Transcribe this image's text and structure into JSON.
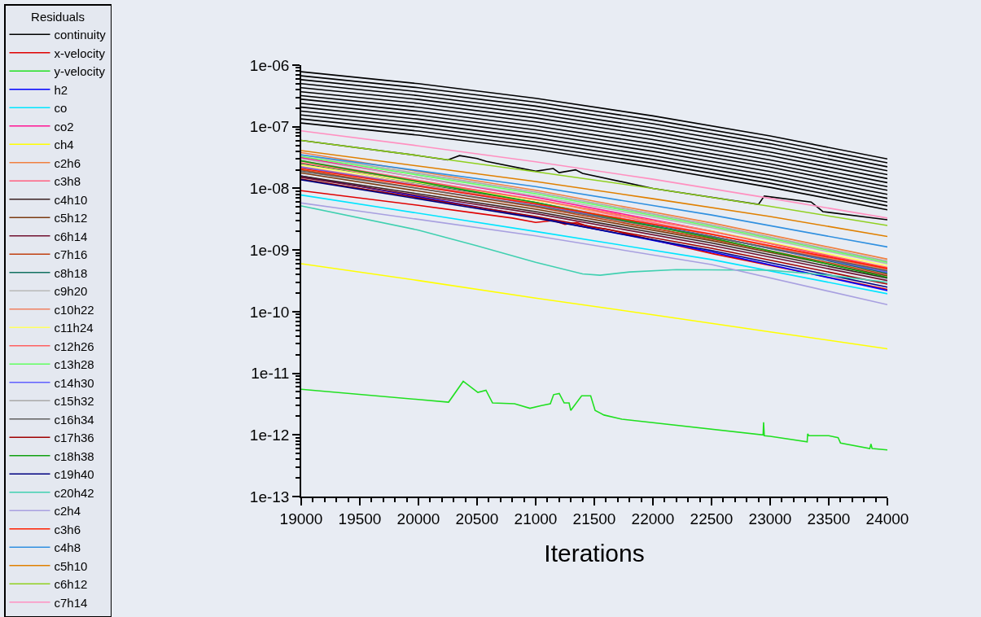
{
  "chart_data": {
    "type": "line",
    "xlabel": "Iterations",
    "legend_title": "Residuals",
    "legend": "left",
    "log": "y",
    "grid": false,
    "marker": "none",
    "line_style": "solid",
    "xlim": [
      19000,
      24000
    ],
    "xticks": [
      19000,
      19500,
      20000,
      20500,
      21000,
      21500,
      22000,
      22500,
      23000,
      23500,
      24000
    ],
    "ylim": [
      1e-13,
      1e-06
    ],
    "yticks": [
      {
        "value": 1e-06,
        "label": "1e-06"
      },
      {
        "value": 1e-07,
        "label": "1e-07"
      },
      {
        "value": 1e-08,
        "label": "1e-08"
      },
      {
        "value": 1e-09,
        "label": "1e-09"
      },
      {
        "value": 1e-10,
        "label": "1e-10"
      },
      {
        "value": 1e-11,
        "label": "1e-11"
      },
      {
        "value": 1e-12,
        "label": "1e-12"
      },
      {
        "value": 1e-13,
        "label": "1e-13"
      }
    ],
    "series": [
      {
        "name": "continuity",
        "color": "#000000",
        "x": [
          19000,
          20000,
          20250,
          20350,
          20500,
          20580,
          21000,
          21150,
          21200,
          21340,
          21400,
          22000,
          22900,
          22950,
          23350,
          23450,
          24000
        ],
        "values": [
          6e-08,
          3.4e-08,
          2.9e-08,
          3.4e-08,
          3.05e-08,
          2.75e-08,
          1.9e-08,
          2.1e-08,
          1.8e-08,
          2e-08,
          1.75e-08,
          1e-08,
          5.5e-09,
          7.5e-09,
          6e-09,
          4.2e-09,
          3.1e-09
        ]
      },
      {
        "name": "x-velocity",
        "color": "#e00000",
        "x": [
          19000,
          20000,
          20800,
          21000,
          21150,
          21250,
          21350,
          21450,
          21600,
          22500,
          24000
        ],
        "values": [
          9.2e-09,
          5.3e-09,
          3.3e-09,
          2.8e-09,
          3e-09,
          2.6e-09,
          2.8e-09,
          2.4e-09,
          2.2e-09,
          8.8e-10,
          2.3e-10
        ]
      },
      {
        "name": "y-velocity",
        "color": "#20e020",
        "x": [
          19000,
          20257,
          20382,
          20507,
          20576,
          20632,
          20820,
          20951,
          21049,
          21125,
          21153,
          21201,
          21243,
          21285,
          21299,
          21392,
          21469,
          21507,
          21583,
          21736,
          22940,
          22944,
          22950,
          23000,
          23316,
          23320,
          23330,
          23400,
          23500,
          23580,
          23600,
          23850,
          23860,
          23870,
          24000
        ],
        "values": [
          5.5e-12,
          3.4e-12,
          7.4e-12,
          4.9e-12,
          5.3e-12,
          3.3e-12,
          3.2e-12,
          2.7e-12,
          3e-12,
          3.2e-12,
          4.5e-12,
          4.7e-12,
          3.3e-12,
          3.3e-12,
          2.5e-12,
          4.3e-12,
          4.3e-12,
          2.5e-12,
          2.1e-12,
          1.8e-12,
          1e-12,
          1.6e-12,
          9.7e-13,
          9.5e-13,
          7.7e-13,
          1.04e-12,
          9.7e-13,
          9.7e-13,
          9.7e-13,
          9e-13,
          7.4e-13,
          6e-13,
          7.1e-13,
          6e-13,
          5.7e-13
        ]
      },
      {
        "name": "h2",
        "color": "#0000ff",
        "x": [
          19000,
          21000,
          22500,
          24000
        ],
        "values": [
          1.58e-08,
          3.4e-09,
          9.3e-10,
          2.2e-10
        ]
      },
      {
        "name": "co",
        "color": "#00e5ff",
        "x": [
          19000,
          21000,
          22500,
          24000
        ],
        "values": [
          7.8e-09,
          2e-09,
          7e-10,
          1.95e-10
        ]
      },
      {
        "name": "co2",
        "color": "#ff1493",
        "x": [
          19000,
          21000,
          22500,
          24000
        ],
        "values": [
          3.16e-08,
          7.2e-09,
          2.04e-09,
          5e-10
        ]
      },
      {
        "name": "ch4",
        "color": "#ffff00",
        "x": [
          19000,
          20000,
          21000,
          22000,
          23000,
          24000
        ],
        "values": [
          6e-10,
          3.2e-10,
          1.66e-10,
          8.9e-11,
          4.7e-11,
          2.5e-11
        ]
      },
      {
        "name": "c2h6",
        "color": "#f08040",
        "x": [
          19000,
          21000,
          22500,
          24000
        ],
        "values": [
          3.8e-08,
          9.3e-09,
          2.75e-09,
          7.1e-10
        ]
      },
      {
        "name": "c3h8",
        "color": "#ff6080",
        "x": [
          19000,
          21000,
          22500,
          24000
        ],
        "values": [
          2.8e-08,
          6.5e-09,
          1.82e-09,
          4.5e-10
        ]
      },
      {
        "name": "c4h10",
        "color": "#3a2020",
        "x": [
          19000,
          21000,
          22500,
          24000
        ],
        "values": [
          1.58e-08,
          4.2e-09,
          1.3e-09,
          3.5e-10
        ]
      },
      {
        "name": "c5h12",
        "color": "#7a3a10",
        "x": [
          19000,
          21000,
          22500,
          24000
        ],
        "values": [
          1.78e-08,
          4.6e-09,
          1.42e-09,
          3.8e-10
        ]
      },
      {
        "name": "c6h14",
        "color": "#701030",
        "x": [
          19000,
          21000,
          22500,
          24000
        ],
        "values": [
          1.51e-08,
          3.9e-09,
          1.19e-09,
          3.2e-10
        ]
      },
      {
        "name": "c7h16",
        "color": "#c04010",
        "x": [
          19000,
          21000,
          22500,
          24000
        ],
        "values": [
          2e-08,
          5e-09,
          1.51e-09,
          4e-10
        ]
      },
      {
        "name": "c8h18",
        "color": "#107060",
        "x": [
          19000,
          21000,
          22500,
          24000
        ],
        "values": [
          2.5e-08,
          5.9e-09,
          1.67e-09,
          4.2e-10
        ]
      },
      {
        "name": "c9h20",
        "color": "#b8b8b8",
        "x": [
          19000,
          21000,
          22500,
          24000
        ],
        "values": [
          3e-08,
          7.6e-09,
          2.3e-09,
          6e-10
        ]
      },
      {
        "name": "c10h22",
        "color": "#f08060",
        "x": [
          19000,
          21000,
          22500,
          24000
        ],
        "values": [
          2.24e-08,
          5.8e-09,
          1.78e-09,
          4.8e-10
        ]
      },
      {
        "name": "c11h24",
        "color": "#ffff60",
        "x": [
          19000,
          21000,
          22500,
          24000
        ],
        "values": [
          2.4e-08,
          6.4e-09,
          2.04e-09,
          5.6e-10
        ]
      },
      {
        "name": "c12h26",
        "color": "#ff6060",
        "x": [
          19000,
          21000,
          22500,
          24000
        ],
        "values": [
          2.6e-08,
          6.6e-09,
          2e-09,
          5.2e-10
        ]
      },
      {
        "name": "c13h28",
        "color": "#60ff60",
        "x": [
          19000,
          21000,
          22500,
          24000
        ],
        "values": [
          3.3e-08,
          8.2e-09,
          2.43e-09,
          6.3e-10
        ]
      },
      {
        "name": "c14h30",
        "color": "#6060ff",
        "x": [
          19000,
          21000,
          22500,
          24000
        ],
        "values": [
          2.2e-08,
          5.5e-09,
          1.66e-09,
          4.4e-10
        ]
      },
      {
        "name": "c15h32",
        "color": "#a8a8a8",
        "x": [
          19000,
          21000,
          22500,
          24000
        ],
        "values": [
          3.5e-08,
          8.7e-09,
          2.56e-09,
          6.6e-10
        ]
      },
      {
        "name": "c16h34",
        "color": "#606060",
        "x": [
          19000,
          21000,
          22500,
          24000
        ],
        "values": [
          1.9e-08,
          5.2e-09,
          1.64e-09,
          4.6e-10
        ]
      },
      {
        "name": "c17h36",
        "color": "#a00000",
        "x": [
          19000,
          21000,
          22500,
          24000
        ],
        "values": [
          1.41e-08,
          3.5e-09,
          1.07e-09,
          2.8e-10
        ]
      },
      {
        "name": "c18h38",
        "color": "#10a010",
        "x": [
          19000,
          21000,
          22500,
          24000
        ],
        "values": [
          2.8e-08,
          5.9e-09,
          1.57e-09,
          3.6e-10
        ]
      },
      {
        "name": "c19h40",
        "color": "#000080",
        "x": [
          19000,
          21000,
          22500,
          24000
        ],
        "values": [
          1.38e-08,
          3.3e-09,
          9.8e-10,
          2.5e-10
        ]
      },
      {
        "name": "c20h42",
        "color": "#40d0b0",
        "x": [
          19000,
          20000,
          20500,
          21000,
          21400,
          21550,
          21800,
          22200,
          23000,
          23500,
          24000
        ],
        "values": [
          5.2e-09,
          2.1e-09,
          1.17e-09,
          6.3e-10,
          4.1e-10,
          3.9e-10,
          4.4e-10,
          4.8e-10,
          4.7e-10,
          3.9e-10,
          3e-10
        ]
      },
      {
        "name": "c2h4",
        "color": "#a8a0e0",
        "x": [
          19000,
          21000,
          22500,
          24000
        ],
        "values": [
          5.8e-09,
          1.7e-09,
          5.8e-10,
          1.3e-10
        ]
      },
      {
        "name": "c3h6",
        "color": "#ff2000",
        "x": [
          19000,
          21000,
          22500,
          24000
        ],
        "values": [
          2.1e-08,
          5.6e-09,
          1.8e-09,
          5e-10
        ]
      },
      {
        "name": "c4h8",
        "color": "#3090e0",
        "x": [
          19000,
          21000,
          22500,
          24000
        ],
        "values": [
          3.5e-08,
          1.07e-08,
          3.7e-09,
          1.12e-09
        ]
      },
      {
        "name": "c5h10",
        "color": "#e08000",
        "x": [
          19000,
          20000,
          21000,
          22000,
          23000,
          24000
        ],
        "values": [
          4.1e-08,
          2.3e-08,
          1.29e-08,
          6.8e-09,
          3.5e-09,
          1.66e-09
        ]
      },
      {
        "name": "c6h12",
        "color": "#90d020",
        "x": [
          19000,
          20000,
          21000,
          22000,
          23000,
          24000
        ],
        "values": [
          6e-08,
          3.4e-08,
          1.86e-08,
          1e-08,
          5.1e-09,
          2.5e-09
        ]
      },
      {
        "name": "c7h14",
        "color": "#ff90c0",
        "x": [
          19000,
          20000,
          21000,
          22000,
          23000,
          24000
        ],
        "values": [
          8.6e-08,
          4.9e-08,
          2.7e-08,
          1.41e-08,
          6.9e-09,
          3.3e-09
        ]
      },
      {
        "color": "#000000",
        "x": [
          19000,
          20000,
          21000,
          22000,
          23000,
          24000
        ],
        "values": [
          7.8e-07,
          5e-07,
          2.9e-07,
          1.5e-07,
          7.1e-08,
          3e-08
        ]
      },
      {
        "color": "#000000",
        "x": [
          19000,
          20000,
          21000,
          22000,
          23000,
          24000
        ],
        "values": [
          6.7e-07,
          4.3e-07,
          2.5e-07,
          1.29e-07,
          6.1e-08,
          2.6e-08
        ]
      },
      {
        "color": "#000000",
        "x": [
          19000,
          20000,
          21000,
          22000,
          23000,
          24000
        ],
        "values": [
          5.8e-07,
          3.7e-07,
          2.16e-07,
          1.12e-07,
          5.3e-08,
          2.24e-08
        ]
      },
      {
        "color": "#000000",
        "x": [
          19000,
          20000,
          21000,
          22000,
          23000,
          24000
        ],
        "values": [
          5e-07,
          3.2e-07,
          1.86e-07,
          9.6e-08,
          4.6e-08,
          1.93e-08
        ]
      },
      {
        "color": "#000000",
        "x": [
          19000,
          20000,
          21000,
          22000,
          23000,
          24000
        ],
        "values": [
          4.3e-07,
          2.78e-07,
          1.61e-07,
          8.3e-08,
          3.9e-08,
          1.67e-08
        ]
      },
      {
        "color": "#000000",
        "x": [
          19000,
          20000,
          21000,
          22000,
          23000,
          24000
        ],
        "values": [
          3.7e-07,
          2.4e-07,
          1.39e-07,
          7.2e-08,
          3.4e-08,
          1.44e-08
        ]
      },
      {
        "color": "#000000",
        "x": [
          19000,
          20000,
          21000,
          22000,
          23000,
          24000
        ],
        "values": [
          3.2e-07,
          2.07e-07,
          1.2e-07,
          6.2e-08,
          2.9e-08,
          1.24e-08
        ]
      },
      {
        "color": "#000000",
        "x": [
          19000,
          20000,
          21000,
          22000,
          23000,
          24000
        ],
        "values": [
          2.8e-07,
          1.78e-07,
          1.03e-07,
          5.3e-08,
          2.5e-08,
          1.07e-08
        ]
      },
      {
        "color": "#000000",
        "x": [
          19000,
          20000,
          21000,
          22000,
          23000,
          24000
        ],
        "values": [
          2.4e-07,
          1.54e-07,
          8.9e-08,
          4.6e-08,
          2.2e-08,
          9.3e-09
        ]
      },
      {
        "color": "#000000",
        "x": [
          19000,
          20000,
          21000,
          22000,
          23000,
          24000
        ],
        "values": [
          2.08e-07,
          1.33e-07,
          7.7e-08,
          4e-08,
          1.88e-08,
          8e-09
        ]
      },
      {
        "color": "#000000",
        "x": [
          19000,
          20000,
          21000,
          22000,
          23000,
          24000
        ],
        "values": [
          1.79e-07,
          1.14e-07,
          6.6e-08,
          3.4e-08,
          1.62e-08,
          6.9e-09
        ]
      },
      {
        "color": "#000000",
        "x": [
          19000,
          20000,
          21000,
          22000,
          23000,
          24000
        ],
        "values": [
          1.55e-07,
          9.9e-08,
          5.7e-08,
          2.95e-08,
          1.4e-08,
          6e-09
        ]
      },
      {
        "color": "#000000",
        "x": [
          19000,
          20000,
          21000,
          22000,
          23000,
          24000
        ],
        "values": [
          1.34e-07,
          8.5e-08,
          4.9e-08,
          2.55e-08,
          1.21e-08,
          5.2e-09
        ]
      },
      {
        "color": "#000000",
        "x": [
          19000,
          20000,
          21000,
          22000,
          23000,
          24000
        ],
        "values": [
          1.15e-07,
          7.3e-08,
          4.3e-08,
          2.2e-08,
          1.04e-08,
          4.5e-09
        ]
      }
    ]
  }
}
